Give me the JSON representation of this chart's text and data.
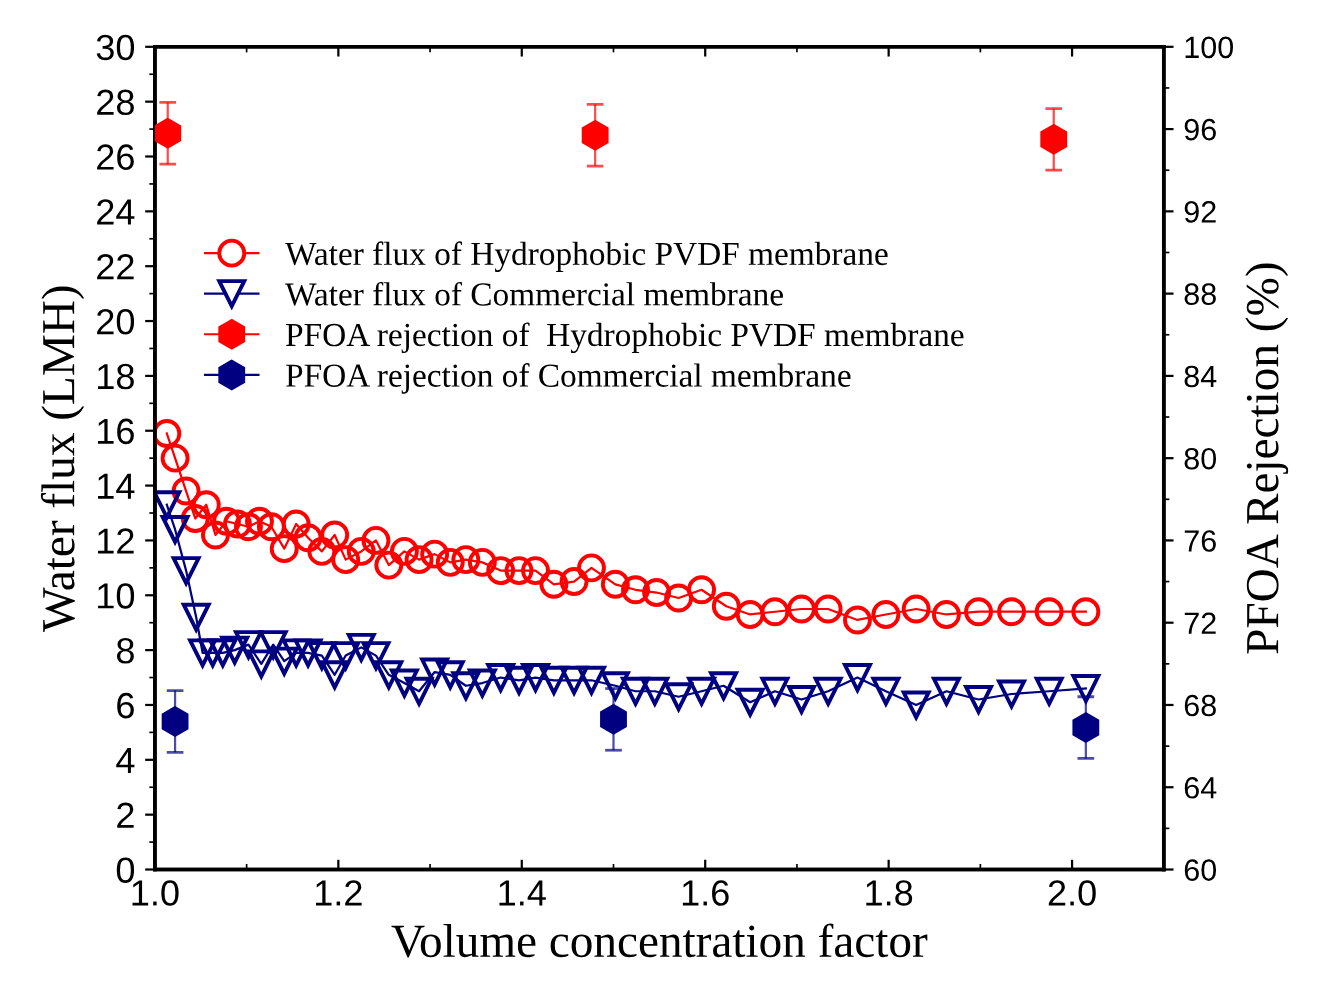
{
  "chart_data": {
    "type": "line",
    "xlabel": "Volume concentration factor",
    "ylabel": "Water flux (LMH)",
    "y2label": "PFOA Rejection (%)",
    "xlim": [
      1.0,
      2.1
    ],
    "xticks": [
      {
        "value": 1.0,
        "label": "1.0"
      },
      1.2,
      1.4,
      1.6,
      1.8,
      {
        "value": 2.0,
        "label": "2.0"
      }
    ],
    "ylim": [
      0,
      30
    ],
    "yticks": [
      0,
      2,
      4,
      6,
      8,
      10,
      12,
      14,
      16,
      18,
      20,
      22,
      24,
      26,
      28,
      30
    ],
    "y2lim": [
      60,
      100
    ],
    "y2ticks": [
      60,
      64,
      68,
      72,
      76,
      80,
      84,
      88,
      92,
      96,
      100
    ],
    "grid": false,
    "legend": "upper left",
    "series": [
      {
        "name": "Water flux of Hydrophobic PVDF membrane",
        "marker": "circle",
        "color": "#ff0000",
        "x": [
          1.013,
          1.022,
          1.034,
          1.044,
          1.056,
          1.066,
          1.078,
          1.09,
          1.102,
          1.114,
          1.127,
          1.141,
          1.154,
          1.167,
          1.182,
          1.196,
          1.208,
          1.225,
          1.241,
          1.255,
          1.272,
          1.288,
          1.305,
          1.322,
          1.339,
          1.357,
          1.377,
          1.397,
          1.415,
          1.435,
          1.457,
          1.476,
          1.502,
          1.524,
          1.547,
          1.571,
          1.596,
          1.623,
          1.649,
          1.676,
          1.705,
          1.734,
          1.766,
          1.797,
          1.83,
          1.863,
          1.898,
          1.934,
          1.975,
          2.015
        ],
        "values": [
          15.9,
          15.0,
          13.8,
          12.8,
          13.3,
          12.2,
          12.7,
          12.6,
          12.5,
          12.7,
          12.5,
          11.7,
          12.6,
          12.1,
          11.6,
          12.2,
          11.3,
          11.6,
          12.0,
          11.1,
          11.6,
          11.3,
          11.5,
          11.2,
          11.3,
          11.2,
          10.9,
          10.9,
          10.9,
          10.4,
          10.5,
          11.0,
          10.4,
          10.2,
          10.1,
          9.9,
          10.2,
          9.6,
          9.3,
          9.4,
          9.5,
          9.5,
          9.1,
          9.3,
          9.5,
          9.3,
          9.4,
          9.4,
          9.4,
          9.4
        ]
      },
      {
        "name": "Water flux of Commercial membrane",
        "marker": "triangle",
        "color": "#000080",
        "x": [
          1.013,
          1.022,
          1.034,
          1.045,
          1.052,
          1.063,
          1.074,
          1.087,
          1.102,
          1.116,
          1.129,
          1.141,
          1.154,
          1.167,
          1.182,
          1.196,
          1.208,
          1.225,
          1.241,
          1.255,
          1.272,
          1.288,
          1.305,
          1.322,
          1.339,
          1.357,
          1.377,
          1.397,
          1.415,
          1.435,
          1.457,
          1.476,
          1.502,
          1.524,
          1.545,
          1.571,
          1.596,
          1.62,
          1.649,
          1.676,
          1.705,
          1.734,
          1.766,
          1.797,
          1.83,
          1.863,
          1.898,
          1.934,
          1.975,
          2.015
        ],
        "values": [
          13.3,
          12.4,
          10.9,
          9.2,
          7.9,
          7.9,
          7.9,
          8.0,
          8.2,
          7.5,
          8.2,
          7.6,
          7.9,
          7.9,
          7.8,
          7.1,
          7.8,
          8.1,
          7.8,
          7.1,
          6.8,
          6.5,
          7.2,
          7.1,
          6.7,
          6.8,
          7.0,
          6.9,
          7.0,
          6.9,
          6.9,
          6.9,
          6.7,
          6.5,
          6.5,
          6.3,
          6.5,
          6.7,
          6.1,
          6.5,
          6.2,
          6.5,
          7.0,
          6.5,
          6.0,
          6.5,
          6.2,
          6.4,
          6.5,
          6.6
        ]
      },
      {
        "name": "PFOA rejection of  Hydrophobic PVDF membrane",
        "type": "scatter",
        "axis": "y2",
        "color": "#ff0000",
        "x": [
          1.014,
          1.48,
          1.98
        ],
        "values": [
          95.8,
          95.7,
          95.5
        ],
        "errors": [
          1.5,
          1.5,
          1.5
        ]
      },
      {
        "name": "PFOA rejection of Commercial membrane",
        "type": "scatter",
        "axis": "y2",
        "color": "#000080",
        "x": [
          1.022,
          1.5,
          2.015
        ],
        "values": [
          67.2,
          67.3,
          66.9
        ],
        "errors": [
          1.5,
          1.5,
          1.5
        ]
      }
    ]
  }
}
